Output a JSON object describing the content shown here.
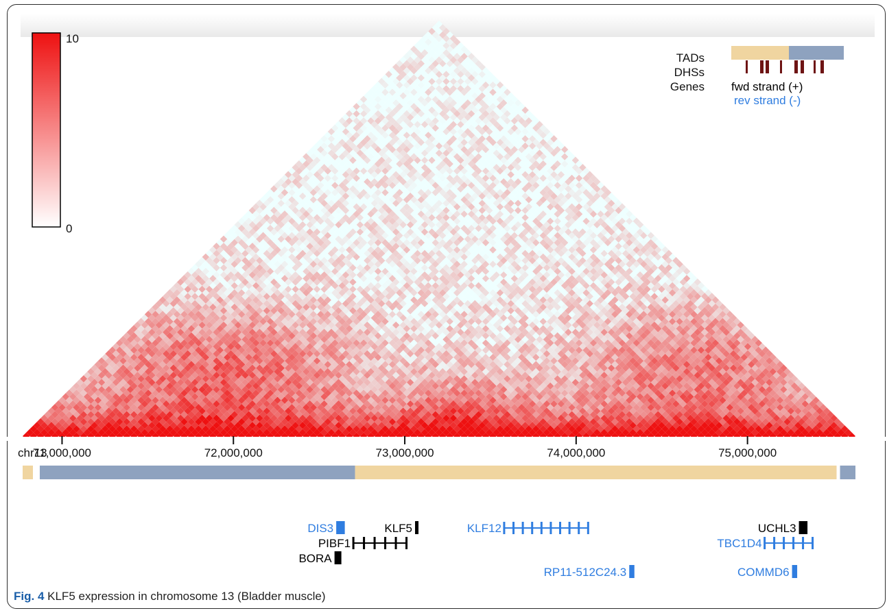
{
  "caption": {
    "label": "Fig. 4",
    "text": "KLF5 expression in chromosome 13 (Bladder muscle)"
  },
  "legend": {
    "entries": [
      {
        "label": "TADs"
      },
      {
        "label": "DHSs"
      },
      {
        "label": "Genes",
        "fwd": "fwd strand (+)",
        "rev": "rev strand (-)"
      }
    ],
    "tad_colors": [
      "#f0d5a0",
      "#8ea2bf"
    ],
    "dhs_color": "#6e1414",
    "fwd_color": "#000000",
    "rev_color": "#2f7de0"
  },
  "colorbar": {
    "max_label": "10",
    "min_label": "0",
    "low_color": "#ffffff",
    "high_color": "#ee1111"
  },
  "chart_data": {
    "type": "heatmap",
    "title": "",
    "chromosome": "chr13",
    "x_range_bp": [
      70770000,
      75630000
    ],
    "x_ticks": [
      {
        "value": 71000000,
        "label": "71,000,000"
      },
      {
        "value": 72000000,
        "label": "72,000,000"
      },
      {
        "value": 73000000,
        "label": "73,000,000"
      },
      {
        "value": 74000000,
        "label": "74,000,000"
      },
      {
        "value": 75000000,
        "label": "75,000,000"
      }
    ],
    "value_range": [
      0,
      10
    ],
    "bins": 116,
    "tads": [
      {
        "start": 70770000,
        "end": 70830000,
        "color": "#f0d5a0"
      },
      {
        "start": 70870000,
        "end": 72710000,
        "color": "#8ea2bf"
      },
      {
        "start": 72710000,
        "end": 75520000,
        "color": "#f0d5a0"
      },
      {
        "start": 75540000,
        "end": 75630000,
        "color": "#8ea2bf"
      }
    ],
    "genes": [
      {
        "name": "DIS3",
        "strand": "-",
        "start": 72600000,
        "end": 72650000,
        "row": 0
      },
      {
        "name": "KLF5",
        "strand": "+",
        "start": 73060000,
        "end": 73080000,
        "row": 0
      },
      {
        "name": "PIBF1",
        "strand": "+",
        "start": 72700000,
        "end": 73010000,
        "row": 1
      },
      {
        "name": "BORA",
        "strand": "+",
        "start": 72590000,
        "end": 72630000,
        "row": 2
      },
      {
        "name": "KLF12",
        "strand": "-",
        "start": 73580000,
        "end": 74070000,
        "row": 0
      },
      {
        "name": "RP11-512C24.3",
        "strand": "-",
        "start": 74310000,
        "end": 74340000,
        "row": 3
      },
      {
        "name": "UCHL3",
        "strand": "+",
        "start": 75300000,
        "end": 75350000,
        "row": 0
      },
      {
        "name": "TBC1D4",
        "strand": "-",
        "start": 75100000,
        "end": 75380000,
        "row": 1
      },
      {
        "name": "COMMD6",
        "strand": "-",
        "start": 75260000,
        "end": 75290000,
        "row": 3
      }
    ]
  }
}
